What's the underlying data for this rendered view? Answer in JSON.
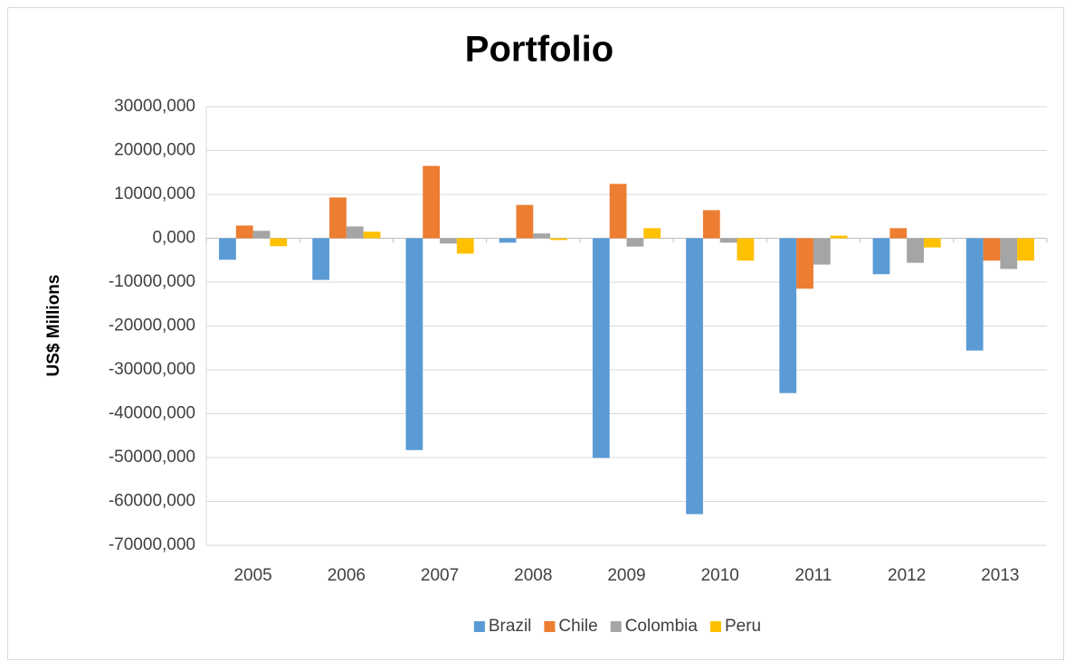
{
  "chart_data": {
    "type": "bar",
    "title": "Portfolio",
    "y_label": "US$ Millions",
    "categories": [
      "2005",
      "2006",
      "2007",
      "2008",
      "2009",
      "2010",
      "2011",
      "2012",
      "2013"
    ],
    "series": [
      {
        "name": "Brazil",
        "color": "#5b9bd5",
        "values": [
          -4900,
          -9500,
          -48300,
          -1000,
          -50100,
          -62900,
          -35300,
          -8200,
          -25600
        ]
      },
      {
        "name": "Chile",
        "color": "#ed7d31",
        "values": [
          2900,
          9300,
          16500,
          7600,
          12400,
          6400,
          -11500,
          2300,
          -5100
        ]
      },
      {
        "name": "Colombia",
        "color": "#a5a5a5",
        "values": [
          1700,
          2700,
          -1200,
          1100,
          -1900,
          -1000,
          -6000,
          -5600,
          -7000
        ]
      },
      {
        "name": "Peru",
        "color": "#ffc000",
        "values": [
          -1800,
          1500,
          -3500,
          -400,
          2300,
          -5100,
          600,
          -2100,
          -5100
        ]
      }
    ],
    "ylim": [
      -70000,
      30000
    ],
    "yticks": [
      {
        "value": -70000,
        "label": "-70000,000"
      },
      {
        "value": -60000,
        "label": "-60000,000"
      },
      {
        "value": -50000,
        "label": "-50000,000"
      },
      {
        "value": -40000,
        "label": "-40000,000"
      },
      {
        "value": -30000,
        "label": "-30000,000"
      },
      {
        "value": -20000,
        "label": "-20000,000"
      },
      {
        "value": -10000,
        "label": "-10000,000"
      },
      {
        "value": 0,
        "label": "0,000"
      },
      {
        "value": 10000,
        "label": "10000,000"
      },
      {
        "value": 20000,
        "label": "20000,000"
      },
      {
        "value": 30000,
        "label": "30000,000"
      }
    ],
    "grid": true,
    "legend": "bottom"
  }
}
